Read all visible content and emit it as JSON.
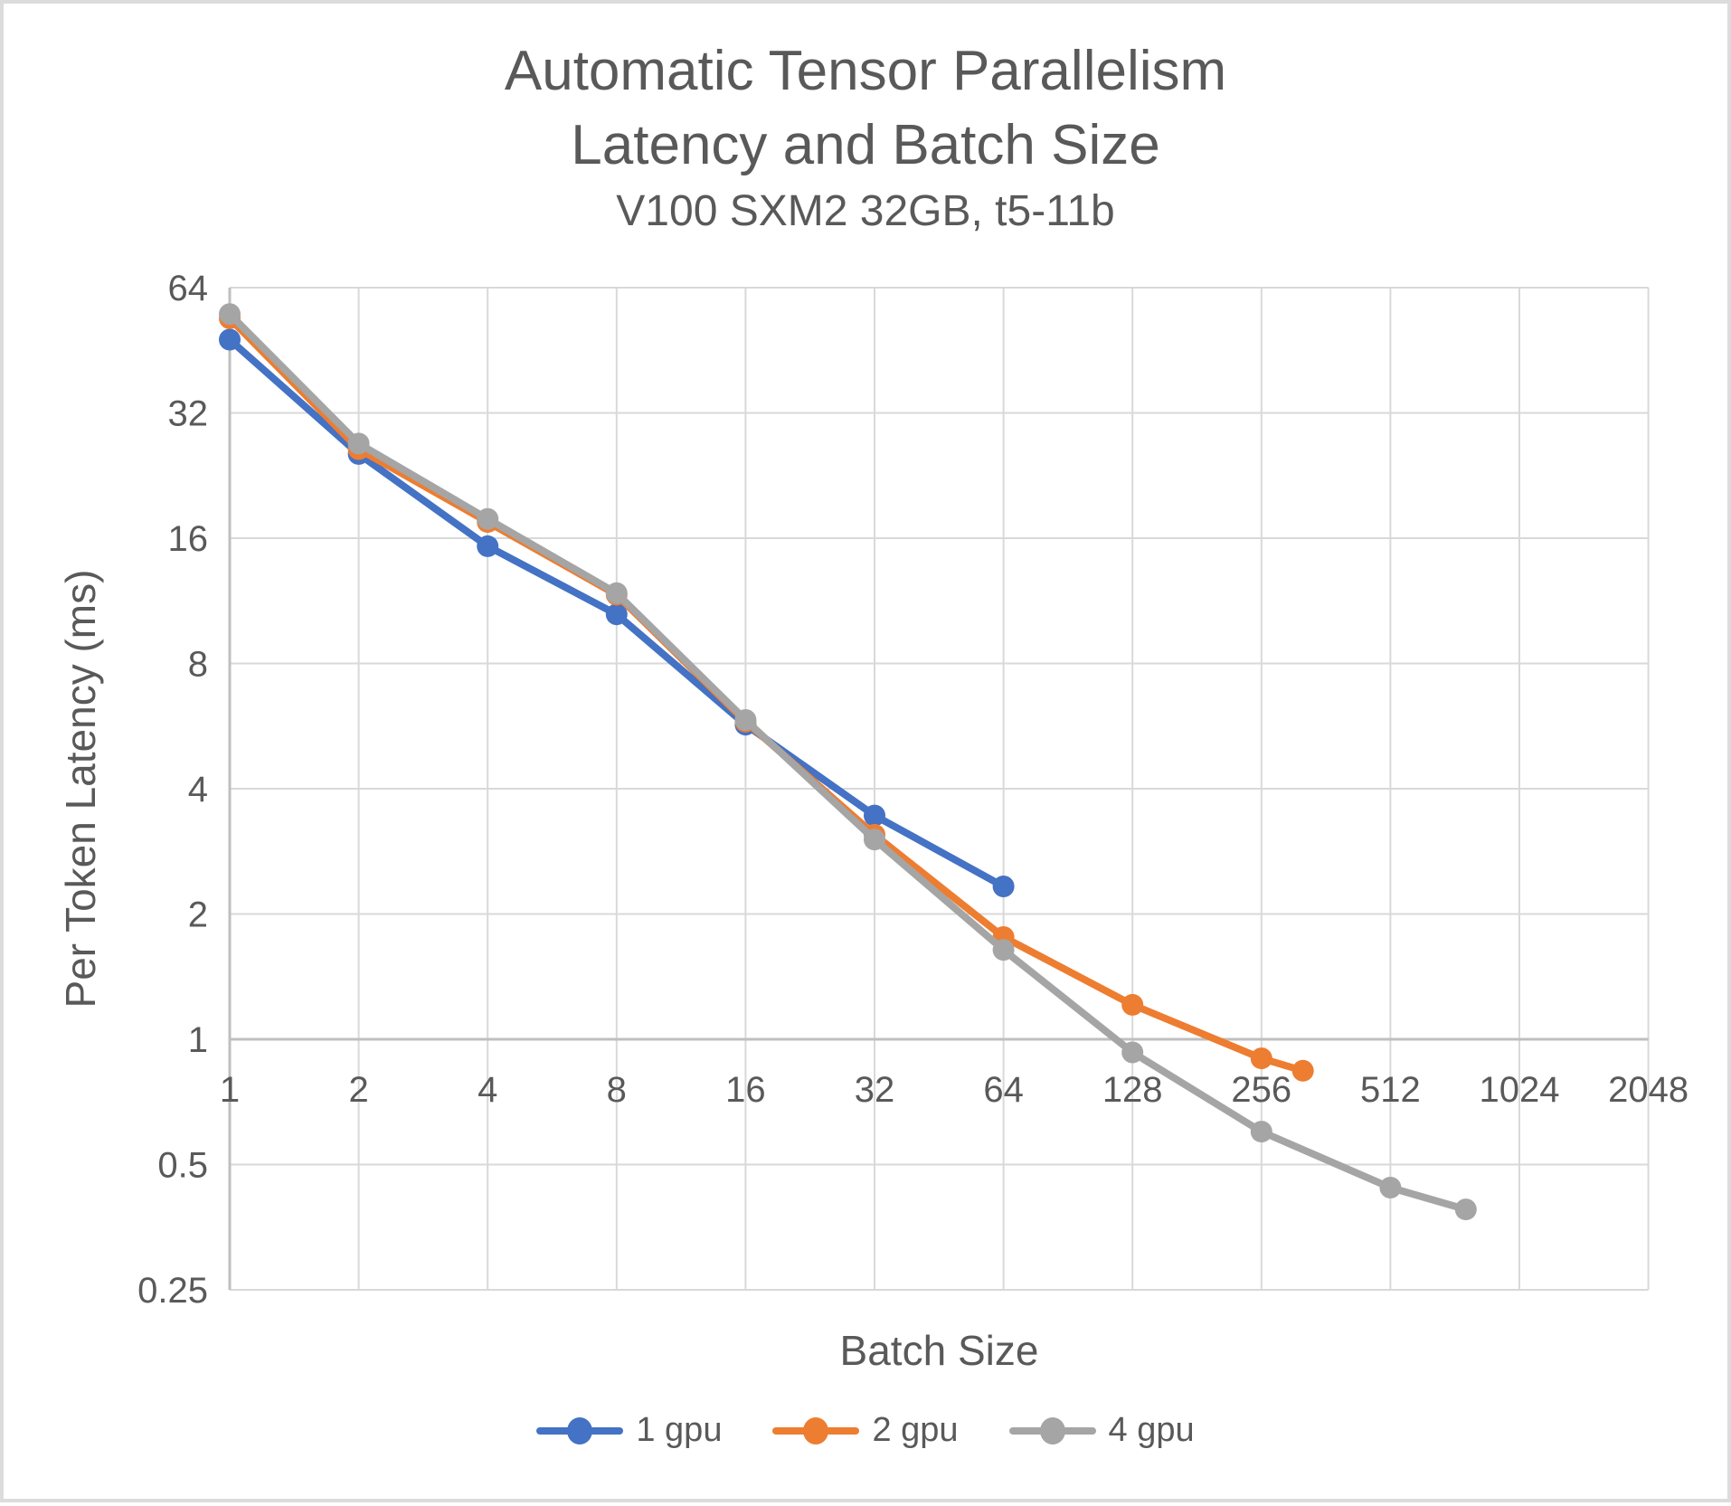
{
  "title": {
    "line1": "Automatic Tensor Parallelism",
    "line2": "Latency and Batch Size",
    "line3": "V100 SXM2 32GB, t5-11b"
  },
  "chart_data": {
    "type": "line",
    "x_scale": "log2",
    "y_scale": "log2",
    "xlabel": "Batch Size",
    "ylabel": "Per Token Latency (ms)",
    "x_ticks": [
      1,
      2,
      4,
      8,
      16,
      32,
      64,
      128,
      256,
      512,
      1024,
      2048
    ],
    "y_ticks": [
      64,
      32,
      16,
      8,
      4,
      2,
      1,
      0.5,
      0.25
    ],
    "xlim": [
      1,
      2048
    ],
    "ylim": [
      0.25,
      64
    ],
    "grid": true,
    "legend_position": "bottom",
    "series": [
      {
        "name": "1 gpu",
        "color": "#4472C4",
        "points": [
          [
            1,
            48
          ],
          [
            2,
            25.5
          ],
          [
            4,
            15.3
          ],
          [
            8,
            10.5
          ],
          [
            16,
            5.7
          ],
          [
            32,
            3.45
          ],
          [
            64,
            2.33
          ]
        ]
      },
      {
        "name": "2 gpu",
        "color": "#ED7D31",
        "points": [
          [
            1,
            54
          ],
          [
            2,
            26.2
          ],
          [
            4,
            17.5
          ],
          [
            8,
            11.7
          ],
          [
            16,
            5.8
          ],
          [
            32,
            3.1
          ],
          [
            64,
            1.76
          ],
          [
            128,
            1.21
          ],
          [
            256,
            0.9
          ],
          [
            320,
            0.84
          ]
        ]
      },
      {
        "name": "4 gpu",
        "color": "#A5A5A5",
        "points": [
          [
            1,
            55.3
          ],
          [
            2,
            27
          ],
          [
            4,
            17.8
          ],
          [
            8,
            11.8
          ],
          [
            16,
            5.85
          ],
          [
            32,
            3.02
          ],
          [
            64,
            1.64
          ],
          [
            128,
            0.93
          ],
          [
            256,
            0.6
          ],
          [
            512,
            0.44
          ],
          [
            768,
            0.39
          ]
        ]
      }
    ],
    "colors": {
      "grid": "#D9D9D9",
      "axis": "#BFBFBF",
      "text": "#595959",
      "background": "#FFFFFF"
    }
  }
}
